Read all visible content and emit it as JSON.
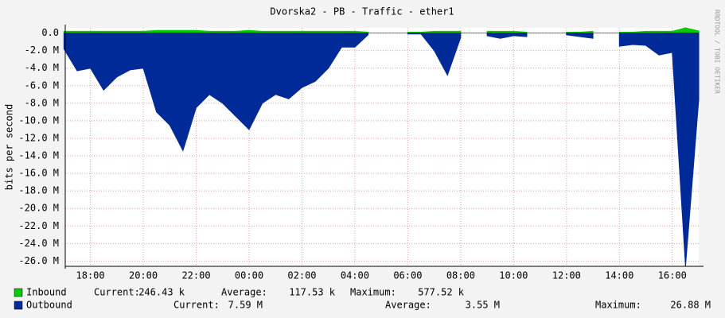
{
  "chart_data": {
    "type": "area",
    "title": "Dvorska2 - PB - Traffic - ether1",
    "y_label": "bits per second",
    "watermark": "RRDTOOL / TOBI OETIKER",
    "x": [
      17,
      17.5,
      18,
      18.5,
      19,
      19.5,
      20,
      20.5,
      21,
      21.5,
      22,
      22.5,
      23,
      23.5,
      24,
      24.5,
      25,
      25.5,
      26,
      26.5,
      27,
      27.5,
      28,
      28.5,
      29,
      29.5,
      30,
      30.5,
      31,
      31.5,
      32,
      32.5,
      33,
      33.5,
      34,
      34.5,
      35,
      35.5,
      36,
      36.5,
      37,
      37.5,
      38,
      38.5,
      39,
      39.5,
      40,
      40.5,
      41
    ],
    "xlim": [
      17.05,
      41
    ],
    "xticks": [
      {
        "value": 18,
        "label": "18:00"
      },
      {
        "value": 20,
        "label": "20:00"
      },
      {
        "value": 22,
        "label": "22:00"
      },
      {
        "value": 24,
        "label": "00:00"
      },
      {
        "value": 26,
        "label": "02:00"
      },
      {
        "value": 28,
        "label": "04:00"
      },
      {
        "value": 30,
        "label": "06:00"
      },
      {
        "value": 32,
        "label": "08:00"
      },
      {
        "value": 34,
        "label": "10:00"
      },
      {
        "value": 36,
        "label": "12:00"
      },
      {
        "value": 38,
        "label": "14:00"
      },
      {
        "value": 40,
        "label": "16:00"
      }
    ],
    "ylim": [
      -26.6,
      0.6
    ],
    "yticks": [
      {
        "value": 0,
        "label": "0.0"
      },
      {
        "value": -2,
        "label": "-2.0 M"
      },
      {
        "value": -4,
        "label": "-4.0 M"
      },
      {
        "value": -6,
        "label": "-6.0 M"
      },
      {
        "value": -8,
        "label": "-8.0 M"
      },
      {
        "value": -10,
        "label": "-10.0 M"
      },
      {
        "value": -12,
        "label": "-12.0 M"
      },
      {
        "value": -14,
        "label": "-14.0 M"
      },
      {
        "value": -16,
        "label": "-16.0 M"
      },
      {
        "value": -18,
        "label": "-18.0 M"
      },
      {
        "value": -20,
        "label": "-20.0 M"
      },
      {
        "value": -22,
        "label": "-22.0 M"
      },
      {
        "value": -24,
        "label": "-24.0 M"
      },
      {
        "value": -26,
        "label": "-26.0 M"
      }
    ],
    "grid": true,
    "series": [
      {
        "name": "Inbound",
        "color": "#00cc00",
        "values": [
          0.2,
          0.2,
          0.2,
          0.2,
          0.2,
          0.2,
          0.2,
          0.3,
          0.3,
          0.3,
          0.3,
          0.2,
          0.2,
          0.2,
          0.3,
          0.2,
          0.2,
          0.2,
          0.2,
          0.2,
          0.2,
          0.2,
          0.2,
          0.1,
          null,
          null,
          0.1,
          0.1,
          0.2,
          0.2,
          0.2,
          null,
          0.2,
          0.2,
          0.2,
          0.1,
          null,
          null,
          0.1,
          0.1,
          0.2,
          null,
          0.1,
          0.1,
          0.2,
          0.2,
          0.2,
          0.6,
          0.25
        ],
        "stats": [
          {
            "label": "Current:",
            "value": "246.43 k"
          },
          {
            "label": "Average:",
            "value": "117.53 k"
          },
          {
            "label": "Maximum:",
            "value": "577.52 k"
          }
        ]
      },
      {
        "name": "Outbound",
        "color": "#002a97",
        "values": [
          -1.8,
          -4.3,
          -4,
          -6.5,
          -5,
          -4.2,
          -4,
          -9,
          -10.5,
          -13.4,
          -8.5,
          -7,
          -8,
          -9.5,
          -11,
          -8,
          -7,
          -7.5,
          -6.2,
          -5.5,
          -4,
          -1.6,
          -1.6,
          -0.2,
          null,
          null,
          -0.1,
          -0.1,
          -2,
          -4.8,
          -0.5,
          null,
          -0.3,
          -0.6,
          -0.3,
          -0.4,
          null,
          null,
          -0.2,
          -0.4,
          -0.6,
          null,
          -1.5,
          -1.3,
          -1.4,
          -2.5,
          -2.2,
          -26.6,
          -7.6
        ],
        "stats": [
          {
            "label": "Current:",
            "value": "7.59 M"
          },
          {
            "label": "Average:",
            "value": "3.55 M"
          },
          {
            "label": "Maximum:",
            "value": "26.88 M"
          }
        ]
      }
    ]
  }
}
